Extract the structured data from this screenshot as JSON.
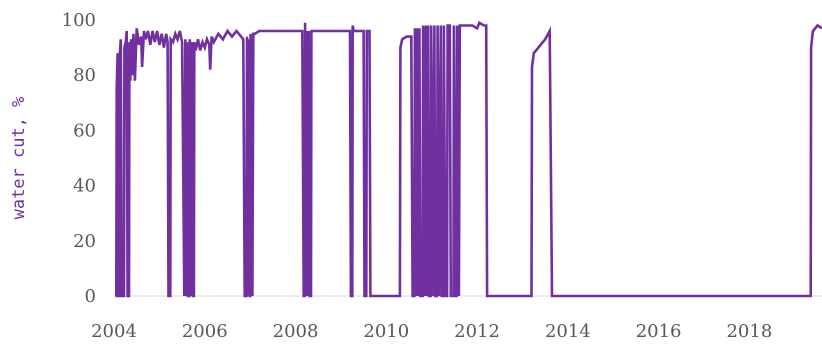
{
  "chart_data": {
    "type": "line",
    "title": "",
    "xlabel": "",
    "ylabel": "water cut, %",
    "x_ticks": [
      "2004",
      "2006",
      "2008",
      "2010",
      "2012",
      "2014",
      "2016",
      "2018"
    ],
    "y_ticks": [
      "0",
      "20",
      "40",
      "60",
      "80",
      "100"
    ],
    "xlim": [
      2004.0,
      2019.6
    ],
    "ylim": [
      0,
      100
    ],
    "grid": false,
    "legend": "none",
    "series": [
      {
        "color": "#7030a0",
        "points": [
          [
            2004.03,
            0
          ],
          [
            2004.05,
            0
          ],
          [
            2004.06,
            75
          ],
          [
            2004.08,
            88
          ],
          [
            2004.1,
            0
          ],
          [
            2004.12,
            0
          ],
          [
            2004.13,
            88
          ],
          [
            2004.15,
            93
          ],
          [
            2004.17,
            0
          ],
          [
            2004.22,
            0
          ],
          [
            2004.23,
            90
          ],
          [
            2004.26,
            92
          ],
          [
            2004.28,
            96
          ],
          [
            2004.3,
            0
          ],
          [
            2004.33,
            0
          ],
          [
            2004.34,
            92
          ],
          [
            2004.36,
            78
          ],
          [
            2004.38,
            93
          ],
          [
            2004.4,
            80
          ],
          [
            2004.43,
            95
          ],
          [
            2004.46,
            78
          ],
          [
            2004.5,
            97
          ],
          [
            2004.55,
            91
          ],
          [
            2004.6,
            94
          ],
          [
            2004.62,
            83
          ],
          [
            2004.66,
            96
          ],
          [
            2004.7,
            93
          ],
          [
            2004.75,
            96
          ],
          [
            2004.8,
            91
          ],
          [
            2004.85,
            96
          ],
          [
            2004.9,
            92
          ],
          [
            2004.95,
            96
          ],
          [
            2005.0,
            91
          ],
          [
            2005.05,
            95
          ],
          [
            2005.1,
            90
          ],
          [
            2005.15,
            95
          ],
          [
            2005.18,
            92
          ],
          [
            2005.2,
            0
          ],
          [
            2005.24,
            0
          ],
          [
            2005.25,
            93
          ],
          [
            2005.3,
            92
          ],
          [
            2005.35,
            95
          ],
          [
            2005.4,
            93
          ],
          [
            2005.45,
            96
          ],
          [
            2005.5,
            92
          ],
          [
            2005.55,
            0
          ],
          [
            2005.57,
            93
          ],
          [
            2005.59,
            0
          ],
          [
            2005.61,
            92
          ],
          [
            2005.63,
            0
          ],
          [
            2005.66,
            0
          ],
          [
            2005.67,
            93
          ],
          [
            2005.7,
            0
          ],
          [
            2005.72,
            92
          ],
          [
            2005.74,
            0
          ],
          [
            2005.76,
            0
          ],
          [
            2005.77,
            92
          ],
          [
            2005.8,
            89
          ],
          [
            2005.85,
            93
          ],
          [
            2005.9,
            89
          ],
          [
            2005.95,
            92
          ],
          [
            2006.0,
            90
          ],
          [
            2006.05,
            93
          ],
          [
            2006.1,
            91
          ],
          [
            2006.12,
            82
          ],
          [
            2006.15,
            94
          ],
          [
            2006.2,
            92
          ],
          [
            2006.3,
            95
          ],
          [
            2006.4,
            93
          ],
          [
            2006.5,
            96
          ],
          [
            2006.6,
            94
          ],
          [
            2006.7,
            96
          ],
          [
            2006.8,
            94
          ],
          [
            2006.85,
            93
          ],
          [
            2006.88,
            0
          ],
          [
            2006.92,
            0
          ],
          [
            2006.93,
            94
          ],
          [
            2006.95,
            0
          ],
          [
            2006.97,
            93
          ],
          [
            2006.99,
            0
          ],
          [
            2007.0,
            0
          ],
          [
            2007.01,
            95
          ],
          [
            2007.05,
            0
          ],
          [
            2007.07,
            95
          ],
          [
            2007.1,
            95
          ],
          [
            2007.2,
            96
          ],
          [
            2007.4,
            96
          ],
          [
            2007.6,
            96
          ],
          [
            2007.8,
            96
          ],
          [
            2008.0,
            96
          ],
          [
            2008.15,
            96
          ],
          [
            2008.18,
            0
          ],
          [
            2008.2,
            0
          ],
          [
            2008.21,
            99
          ],
          [
            2008.23,
            0
          ],
          [
            2008.25,
            96
          ],
          [
            2008.27,
            0
          ],
          [
            2008.29,
            96
          ],
          [
            2008.31,
            0
          ],
          [
            2008.34,
            0
          ],
          [
            2008.35,
            96
          ],
          [
            2008.6,
            96
          ],
          [
            2008.9,
            96
          ],
          [
            2009.1,
            96
          ],
          [
            2009.2,
            96
          ],
          [
            2009.22,
            0
          ],
          [
            2009.25,
            0
          ],
          [
            2009.26,
            98
          ],
          [
            2009.28,
            96
          ],
          [
            2009.4,
            96
          ],
          [
            2009.5,
            96
          ],
          [
            2009.52,
            0
          ],
          [
            2009.56,
            0
          ],
          [
            2009.57,
            96
          ],
          [
            2009.63,
            96
          ],
          [
            2009.65,
            0
          ],
          [
            2010.3,
            0
          ],
          [
            2010.31,
            90
          ],
          [
            2010.35,
            93
          ],
          [
            2010.45,
            94
          ],
          [
            2010.55,
            94
          ],
          [
            2010.58,
            0
          ],
          [
            2010.62,
            0
          ],
          [
            2010.63,
            97
          ],
          [
            2010.66,
            0
          ],
          [
            2010.68,
            97
          ],
          [
            2010.7,
            0
          ],
          [
            2010.73,
            97
          ],
          [
            2010.75,
            0
          ],
          [
            2010.8,
            0
          ],
          [
            2010.81,
            98
          ],
          [
            2010.84,
            0
          ],
          [
            2010.87,
            98
          ],
          [
            2010.89,
            0
          ],
          [
            2010.92,
            98
          ],
          [
            2010.94,
            0
          ],
          [
            2010.98,
            0
          ],
          [
            2010.99,
            98
          ],
          [
            2011.02,
            0
          ],
          [
            2011.06,
            98
          ],
          [
            2011.08,
            0
          ],
          [
            2011.12,
            0
          ],
          [
            2011.13,
            98
          ],
          [
            2011.16,
            0
          ],
          [
            2011.2,
            98
          ],
          [
            2011.22,
            0
          ],
          [
            2011.26,
            0
          ],
          [
            2011.27,
            98
          ],
          [
            2011.3,
            0
          ],
          [
            2011.34,
            0
          ],
          [
            2011.35,
            98
          ],
          [
            2011.4,
            98
          ],
          [
            2011.42,
            0
          ],
          [
            2011.48,
            0
          ],
          [
            2011.49,
            98
          ],
          [
            2011.53,
            0
          ],
          [
            2011.55,
            0
          ],
          [
            2011.56,
            98
          ],
          [
            2011.6,
            0
          ],
          [
            2011.62,
            98
          ],
          [
            2011.7,
            98
          ],
          [
            2011.8,
            98
          ],
          [
            2011.9,
            98
          ],
          [
            2012.0,
            97
          ],
          [
            2012.05,
            99
          ],
          [
            2012.15,
            98
          ],
          [
            2012.2,
            98
          ],
          [
            2012.22,
            0
          ],
          [
            2013.2,
            0
          ],
          [
            2013.21,
            83
          ],
          [
            2013.25,
            88
          ],
          [
            2013.3,
            89
          ],
          [
            2013.4,
            91
          ],
          [
            2013.5,
            93
          ],
          [
            2013.6,
            96
          ],
          [
            2013.65,
            0
          ],
          [
            2019.35,
            0
          ],
          [
            2019.36,
            90
          ],
          [
            2019.4,
            96
          ],
          [
            2019.45,
            97
          ],
          [
            2019.5,
            98
          ],
          [
            2019.6,
            97
          ]
        ]
      }
    ]
  }
}
